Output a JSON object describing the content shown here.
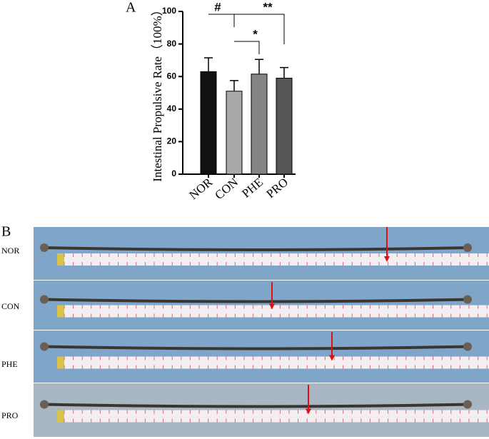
{
  "chart_data": {
    "type": "bar",
    "y_label": "Intestinal Propulsive Rate（100%）",
    "categories": [
      "NOR",
      "CON",
      "PHE",
      "PRO"
    ],
    "values": [
      63,
      51,
      61.5,
      59
    ],
    "errors": [
      8.5,
      6.5,
      9,
      6.5
    ],
    "colors": [
      "#111111",
      "#a8a8a8",
      "#858585",
      "#555555"
    ],
    "ylim": [
      0,
      100
    ],
    "yticks": [
      0,
      20,
      40,
      60,
      80,
      100
    ],
    "significance": [
      {
        "label": "#",
        "pair": [
          "NOR",
          "CON"
        ]
      },
      {
        "label": "*",
        "pair": [
          "CON",
          "PHE"
        ]
      },
      {
        "label": "**",
        "pair": [
          "CON",
          "PRO"
        ]
      }
    ]
  },
  "panel_labels": [
    "A",
    "B"
  ],
  "photo_panel": {
    "rows": [
      "NOR",
      "CON",
      "PHE",
      "PRO"
    ]
  }
}
